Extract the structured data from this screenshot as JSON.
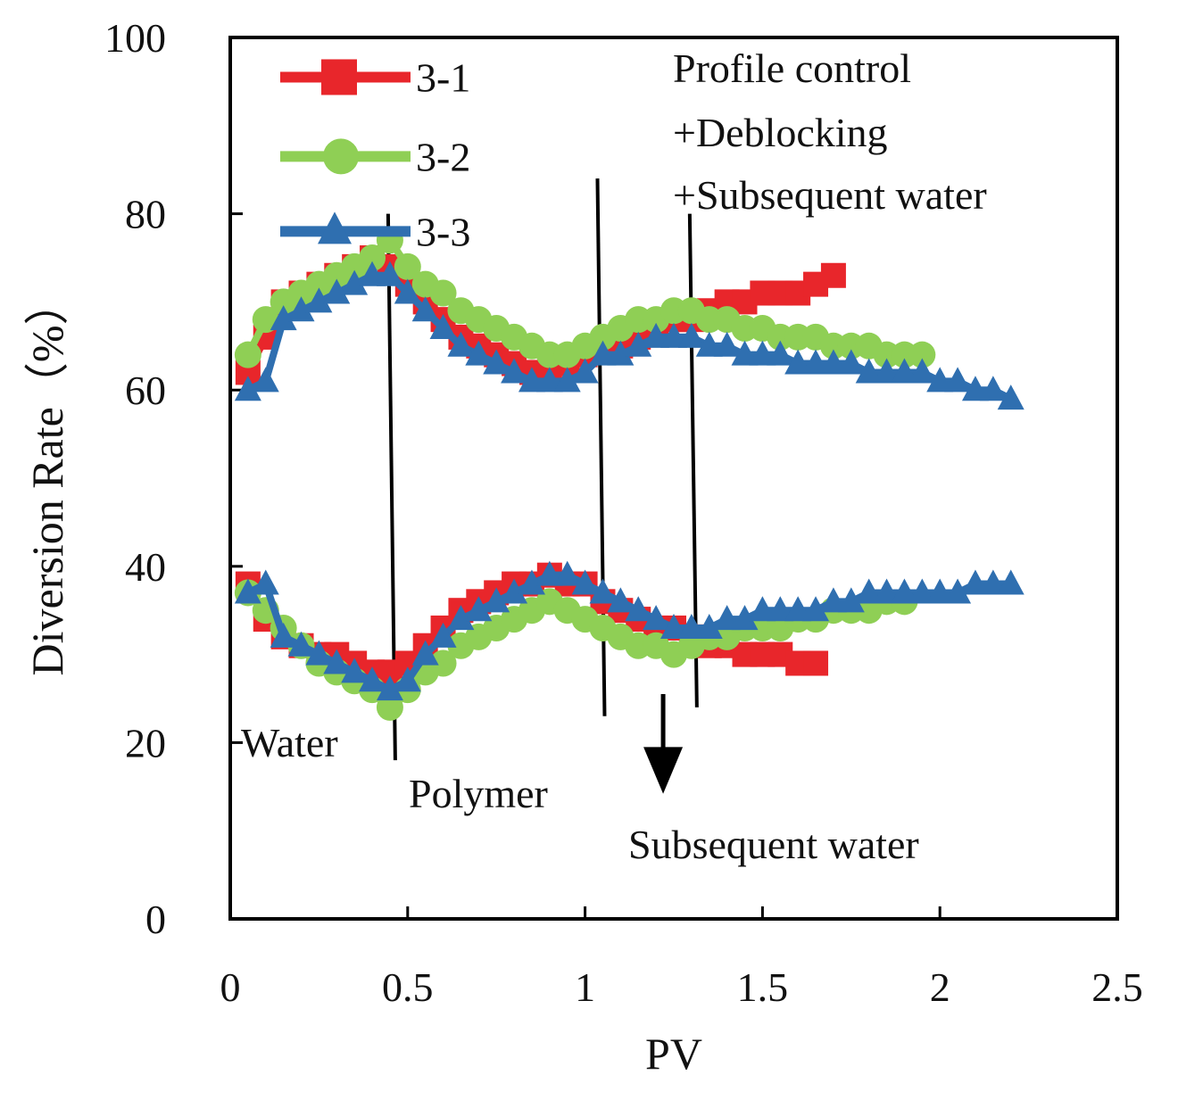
{
  "chart_data": {
    "type": "line",
    "title": "",
    "xlabel": "PV",
    "ylabel": "Diversion Rate（%）",
    "xlim": [
      0,
      2.5
    ],
    "ylim": [
      0,
      100
    ],
    "xticks": [
      0,
      0.5,
      1,
      1.5,
      2,
      2.5
    ],
    "xtick_labels": [
      "0",
      "0.5",
      "1",
      "1.5",
      "2",
      "2.5"
    ],
    "yticks": [
      0,
      20,
      40,
      60,
      80,
      100
    ],
    "ytick_labels": [
      "0",
      "20",
      "40",
      "60",
      "80",
      "100"
    ],
    "grid": false,
    "legend_position": "top-left",
    "series": [
      {
        "name": "3-1",
        "color": "#e8262b",
        "marker": "square",
        "x": [
          0.05,
          0.1,
          0.15,
          0.2,
          0.25,
          0.3,
          0.35,
          0.4,
          0.45,
          0.5,
          0.55,
          0.6,
          0.65,
          0.7,
          0.75,
          0.8,
          0.85,
          0.9,
          0.95,
          1.0,
          1.05,
          1.1,
          1.15,
          1.2,
          1.25,
          1.3,
          1.35,
          1.4,
          1.45,
          1.5,
          1.55,
          1.6,
          1.65,
          1.7
        ],
        "values": [
          62,
          66,
          70,
          71,
          72,
          73,
          74,
          75,
          74,
          72,
          70,
          68,
          66,
          65,
          64,
          63,
          62,
          62,
          63,
          64,
          65,
          65,
          66,
          67,
          68,
          68,
          69,
          70,
          70,
          71,
          71,
          71,
          72,
          73
        ]
      },
      {
        "name": "3-1",
        "color": "#e8262b",
        "marker": "square",
        "x": [
          0.05,
          0.1,
          0.15,
          0.2,
          0.25,
          0.3,
          0.35,
          0.4,
          0.45,
          0.5,
          0.55,
          0.6,
          0.65,
          0.7,
          0.75,
          0.8,
          0.85,
          0.9,
          0.95,
          1.0,
          1.05,
          1.1,
          1.15,
          1.2,
          1.25,
          1.3,
          1.35,
          1.4,
          1.45,
          1.5,
          1.55,
          1.6,
          1.65
        ],
        "values": [
          38,
          34,
          32,
          31,
          30,
          30,
          29,
          28,
          28,
          29,
          31,
          33,
          35,
          36,
          37,
          38,
          38,
          39,
          38,
          38,
          36,
          35,
          34,
          33,
          33,
          32,
          31,
          31,
          30,
          30,
          30,
          29,
          29
        ]
      },
      {
        "name": "3-2",
        "color": "#8fcf55",
        "marker": "circle",
        "x": [
          0.05,
          0.1,
          0.15,
          0.2,
          0.25,
          0.3,
          0.35,
          0.4,
          0.45,
          0.5,
          0.55,
          0.6,
          0.65,
          0.7,
          0.75,
          0.8,
          0.85,
          0.9,
          0.95,
          1.0,
          1.05,
          1.1,
          1.15,
          1.2,
          1.25,
          1.3,
          1.35,
          1.4,
          1.45,
          1.5,
          1.55,
          1.6,
          1.65,
          1.7,
          1.75,
          1.8,
          1.85,
          1.9,
          1.95
        ],
        "values": [
          64,
          68,
          70,
          71,
          72,
          73,
          74,
          75,
          77,
          74,
          72,
          71,
          69,
          68,
          67,
          66,
          65,
          64,
          64,
          65,
          66,
          67,
          68,
          68,
          69,
          69,
          68,
          68,
          67,
          67,
          66,
          66,
          66,
          65,
          65,
          65,
          64,
          64,
          64
        ]
      },
      {
        "name": "3-2",
        "color": "#8fcf55",
        "marker": "circle",
        "x": [
          0.05,
          0.1,
          0.15,
          0.2,
          0.25,
          0.3,
          0.35,
          0.4,
          0.45,
          0.5,
          0.55,
          0.6,
          0.65,
          0.7,
          0.75,
          0.8,
          0.85,
          0.9,
          0.95,
          1.0,
          1.05,
          1.1,
          1.15,
          1.2,
          1.25,
          1.3,
          1.35,
          1.4,
          1.45,
          1.5,
          1.55,
          1.6,
          1.65,
          1.7,
          1.75,
          1.8,
          1.85,
          1.9
        ],
        "values": [
          37,
          35,
          33,
          31,
          29,
          28,
          27,
          26,
          24,
          26,
          28,
          29,
          31,
          32,
          33,
          34,
          35,
          36,
          35,
          34,
          33,
          32,
          31,
          31,
          30,
          31,
          32,
          32,
          33,
          33,
          33,
          34,
          34,
          35,
          35,
          35,
          36,
          36
        ]
      },
      {
        "name": "3-3",
        "color": "#2f6fb0",
        "marker": "triangle",
        "x": [
          0.05,
          0.1,
          0.15,
          0.2,
          0.25,
          0.3,
          0.35,
          0.4,
          0.45,
          0.5,
          0.55,
          0.6,
          0.65,
          0.7,
          0.75,
          0.8,
          0.85,
          0.9,
          0.95,
          1.0,
          1.05,
          1.1,
          1.15,
          1.2,
          1.25,
          1.3,
          1.35,
          1.4,
          1.45,
          1.5,
          1.55,
          1.6,
          1.65,
          1.7,
          1.75,
          1.8,
          1.85,
          1.9,
          1.95,
          2.0,
          2.05,
          2.1,
          2.15,
          2.2
        ],
        "values": [
          60,
          61,
          68,
          69,
          70,
          71,
          72,
          73,
          73,
          71,
          69,
          67,
          65,
          64,
          63,
          62,
          61,
          61,
          61,
          62,
          64,
          64,
          65,
          66,
          66,
          66,
          65,
          65,
          64,
          64,
          64,
          63,
          63,
          63,
          63,
          62,
          62,
          62,
          62,
          61,
          61,
          60,
          60,
          59
        ]
      },
      {
        "name": "3-3",
        "color": "#2f6fb0",
        "marker": "triangle",
        "x": [
          0.05,
          0.1,
          0.15,
          0.2,
          0.25,
          0.3,
          0.35,
          0.4,
          0.45,
          0.5,
          0.55,
          0.6,
          0.65,
          0.7,
          0.75,
          0.8,
          0.85,
          0.9,
          0.95,
          1.0,
          1.05,
          1.1,
          1.15,
          1.2,
          1.25,
          1.3,
          1.35,
          1.4,
          1.45,
          1.5,
          1.55,
          1.6,
          1.65,
          1.7,
          1.75,
          1.8,
          1.85,
          1.9,
          1.95,
          2.0,
          2.05,
          2.1,
          2.15,
          2.2
        ],
        "values": [
          37,
          38,
          32,
          31,
          30,
          29,
          28,
          27,
          26,
          27,
          30,
          32,
          34,
          35,
          36,
          37,
          38,
          39,
          39,
          38,
          37,
          36,
          35,
          34,
          33,
          33,
          33,
          34,
          34,
          35,
          35,
          35,
          35,
          36,
          36,
          37,
          37,
          37,
          37,
          37,
          37,
          38,
          38,
          38
        ]
      }
    ],
    "legend": [
      {
        "label": "3-1",
        "color": "#e8262b",
        "marker": "square"
      },
      {
        "label": "3-2",
        "color": "#8fcf55",
        "marker": "circle"
      },
      {
        "label": "3-3",
        "color": "#2f6fb0",
        "marker": "triangle"
      }
    ],
    "stage_lines": [
      0.46,
      1.05,
      1.31
    ],
    "annotations": {
      "water": "Water",
      "polymer": "Polymer",
      "subsequent": "Subsequent water",
      "profile_1": "Profile control",
      "profile_2": "+Deblocking",
      "profile_3": "+Subsequent  water"
    }
  }
}
